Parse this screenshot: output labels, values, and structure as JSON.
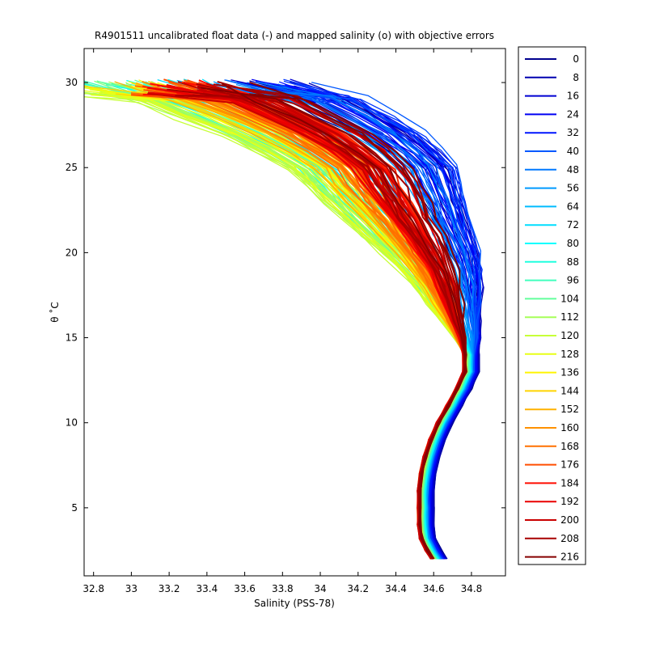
{
  "chart_data": {
    "type": "line",
    "title": "R4901511 uncalibrated float data (-) and mapped salinity (o) with objective errors",
    "xlabel": "Salinity (PSS-78)",
    "ylabel": "θ ˚C",
    "xlim": [
      32.75,
      34.98
    ],
    "ylim": [
      1.0,
      32.0
    ],
    "xticks": [
      32.8,
      33,
      33.2,
      33.4,
      33.6,
      33.8,
      34,
      34.2,
      34.4,
      34.6,
      34.8
    ],
    "xtick_labels": [
      "32.8",
      "33",
      "33.2",
      "33.4",
      "33.6",
      "33.8",
      "34",
      "34.2",
      "34.4",
      "34.6",
      "34.8"
    ],
    "yticks": [
      5,
      10,
      15,
      20,
      25,
      30
    ],
    "ytick_labels": [
      "5",
      "10",
      "15",
      "20",
      "25",
      "30"
    ],
    "grid": false,
    "legend_position": "outside-right",
    "colormap": "jet",
    "legend_entries": [
      "0",
      "8",
      "16",
      "24",
      "32",
      "40",
      "48",
      "56",
      "64",
      "72",
      "80",
      "88",
      "96",
      "104",
      "112",
      "120",
      "128",
      "136",
      "144",
      "152",
      "160",
      "168",
      "176",
      "184",
      "192",
      "200",
      "208",
      "216"
    ],
    "legend_colors": [
      "#00008f",
      "#0000b0",
      "#0000d2",
      "#0000f3",
      "#0015ff",
      "#0036ff",
      "#0058ff",
      "#0079ff",
      "#009aff",
      "#00bcff",
      "#00ddff",
      "#00feff",
      "#20ffdf",
      "#42ffbd",
      "#63ff9c",
      "#84ff7b",
      "#a6ff59",
      "#c7ff38",
      "#e8ff17",
      "#fff500",
      "#ffd400",
      "#ffb200",
      "#ff9100",
      "#ff7000",
      "#ff4e00",
      "#ff2d00",
      "#ff0c00",
      "#ea0000",
      "#c90000",
      "#a70000",
      "#860000"
    ],
    "base_profile": [
      [
        34.62,
        2.0
      ],
      [
        34.59,
        2.5
      ],
      [
        34.56,
        3.2
      ],
      [
        34.55,
        4.0
      ],
      [
        34.55,
        5.0
      ],
      [
        34.55,
        6.0
      ],
      [
        34.56,
        7.0
      ],
      [
        34.58,
        8.0
      ],
      [
        34.61,
        9.0
      ],
      [
        34.65,
        10.0
      ],
      [
        34.7,
        11.0
      ],
      [
        34.75,
        12.0
      ],
      [
        34.79,
        13.0
      ],
      [
        34.79,
        14.0
      ],
      [
        34.76,
        15.0
      ],
      [
        34.72,
        16.0
      ],
      [
        34.68,
        17.0
      ],
      [
        34.64,
        18.0
      ],
      [
        34.59,
        19.0
      ],
      [
        34.53,
        20.0
      ],
      [
        34.46,
        21.0
      ],
      [
        34.39,
        22.0
      ],
      [
        34.32,
        23.0
      ],
      [
        34.25,
        24.0
      ],
      [
        34.18,
        25.0
      ],
      [
        34.05,
        26.0
      ],
      [
        33.9,
        27.0
      ],
      [
        33.7,
        28.0
      ],
      [
        33.5,
        29.0
      ],
      [
        33.3,
        29.5
      ]
    ],
    "series_shift": [
      {
        "name": "0",
        "surface_shift": 0.5,
        "deep_shift": 0.05
      },
      {
        "name": "40",
        "surface_shift": 0.6,
        "deep_shift": 0.02
      },
      {
        "name": "80",
        "surface_shift": -0.2,
        "deep_shift": 0.0
      },
      {
        "name": "120",
        "surface_shift": -0.4,
        "deep_shift": -0.02
      },
      {
        "name": "160",
        "surface_shift": 0.0,
        "deep_shift": -0.03
      },
      {
        "name": "200",
        "surface_shift": 0.2,
        "deep_shift": -0.03
      },
      {
        "name": "216",
        "surface_shift": 0.3,
        "deep_shift": -0.02
      }
    ]
  }
}
